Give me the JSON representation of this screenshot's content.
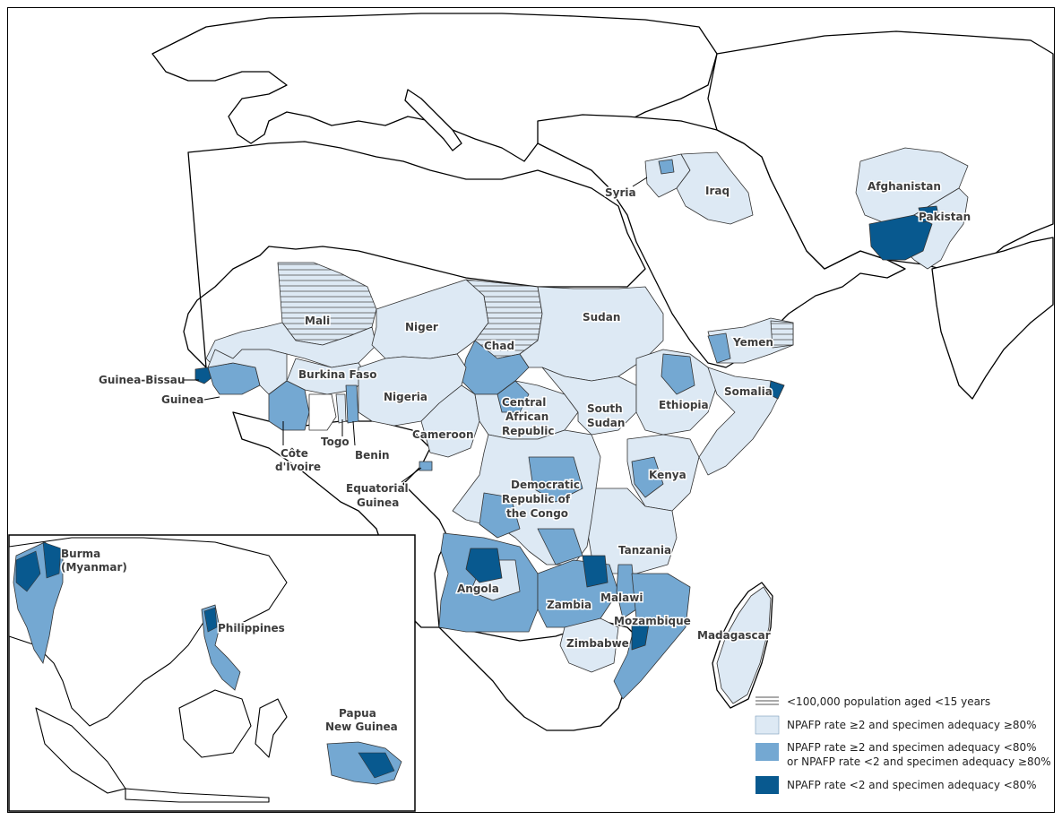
{
  "colors": {
    "category_1": "#dde9f4",
    "category_2": "#74a8d2",
    "category_3": "#08598f",
    "land": "#ffffff",
    "border": "#000000"
  },
  "labels": {
    "afghanistan": "Afghanistan",
    "pakistan": "Pakistan",
    "syria": "Syria",
    "iraq": "Iraq",
    "yemen": "Yemen",
    "somalia": "Somalia",
    "mali": "Mali",
    "niger": "Niger",
    "chad": "Chad",
    "sudan": "Sudan",
    "burkina_faso": "Burkina Faso",
    "nigeria": "Nigeria",
    "guinea_bissau": "Guinea-Bissau",
    "guinea": "Guinea",
    "cote_divoire_1": "Côte",
    "cote_divoire_2": "d'Ivoire",
    "togo": "Togo",
    "benin": "Benin",
    "cameroon": "Cameroon",
    "car_1": "Central",
    "car_2": "African",
    "car_3": "Republic",
    "south_sudan_1": "South",
    "south_sudan_2": "Sudan",
    "ethiopia": "Ethiopia",
    "kenya": "Kenya",
    "eq_guinea_1": "Equatorial",
    "eq_guinea_2": "Guinea",
    "drc_1": "Democratic",
    "drc_2": "Republic of",
    "drc_3": "the Congo",
    "tanzania": "Tanzania",
    "angola": "Angola",
    "zambia": "Zambia",
    "malawi": "Malawi",
    "mozambique": "Mozambique",
    "zimbabwe": "Zimbabwe",
    "madagascar": "Madagascar",
    "burma_1": "Burma",
    "burma_2": "(Myanmar)",
    "philippines": "Philippines",
    "png_1": "Papua",
    "png_2": "New Guinea"
  },
  "legend": [
    {
      "pattern": "hatched",
      "text": "<100,000 population aged <15 years"
    },
    {
      "pattern": "category_1",
      "text": "NPAFP rate ≥2 and specimen adequacy ≥80%"
    },
    {
      "pattern": "category_2",
      "text": "NPAFP rate ≥2 and specimen adequacy <80%",
      "text2": "or NPAFP rate <2 and specimen adequacy ≥80%"
    },
    {
      "pattern": "category_3",
      "text": "NPAFP rate <2 and specimen adequacy <80%"
    }
  ]
}
